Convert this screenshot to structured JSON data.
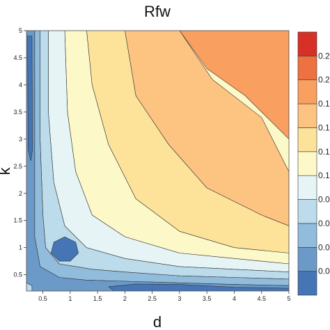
{
  "chart_data": {
    "type": "contour",
    "title": "Rfw",
    "xlabel": "d",
    "ylabel": "k",
    "xlim": [
      0.2,
      5
    ],
    "ylim": [
      0.2,
      5
    ],
    "x_ticks": [
      "0.5",
      "1",
      "1.5",
      "2",
      "2.5",
      "3",
      "3.5",
      "4",
      "4.5",
      "5"
    ],
    "y_ticks": [
      "0.5",
      "1",
      "1.5",
      "2",
      "2.5",
      "3",
      "3.5",
      "4",
      "4.5",
      "5"
    ],
    "colorbar": {
      "tick_labels": [
        "0.0",
        "0.0",
        "0.0",
        "0.0",
        "0.1",
        "0.1",
        "0.1",
        "0.1",
        "0.2",
        "0.2"
      ],
      "colors": [
        "#4575b4",
        "#6b9ac9",
        "#92bcdc",
        "#bcdbeb",
        "#e6f4f5",
        "#fcf8c8",
        "#fde39a",
        "#fdc380",
        "#f99f5f",
        "#ee7141",
        "#d73027"
      ]
    },
    "levels": [
      {
        "color": "#f99f5f",
        "contour": [
          [
            3.0,
            5.0
          ],
          [
            5.0,
            5.0
          ],
          [
            5.0,
            3.0
          ],
          [
            4.2,
            3.8
          ],
          [
            3.5,
            4.3
          ]
        ]
      },
      {
        "color": "#fdc380",
        "contour": [
          [
            2.0,
            5.0
          ],
          [
            3.0,
            5.0
          ],
          [
            3.6,
            4.1
          ],
          [
            4.5,
            3.4
          ],
          [
            5.0,
            2.4
          ],
          [
            5.0,
            1.4
          ],
          [
            4.5,
            1.6
          ],
          [
            3.5,
            2.1
          ],
          [
            2.8,
            2.9
          ],
          [
            2.2,
            3.8
          ]
        ]
      },
      {
        "color": "#fde39a",
        "contour": [
          [
            1.3,
            5.0
          ],
          [
            2.0,
            5.0
          ],
          [
            2.2,
            3.8
          ],
          [
            2.8,
            2.9
          ],
          [
            3.5,
            2.1
          ],
          [
            4.5,
            1.6
          ],
          [
            5.0,
            1.4
          ],
          [
            5.0,
            0.9
          ],
          [
            4.0,
            1.0
          ],
          [
            3.0,
            1.3
          ],
          [
            2.2,
            1.9
          ],
          [
            1.7,
            2.9
          ],
          [
            1.4,
            4.0
          ]
        ]
      },
      {
        "color": "#fcf8c8",
        "contour": [
          [
            0.9,
            5.0
          ],
          [
            1.3,
            5.0
          ],
          [
            1.4,
            4.0
          ],
          [
            1.7,
            2.9
          ],
          [
            2.2,
            1.9
          ],
          [
            3.0,
            1.3
          ],
          [
            4.0,
            1.0
          ],
          [
            5.0,
            0.9
          ],
          [
            5.0,
            0.7
          ],
          [
            4.0,
            0.8
          ],
          [
            3.0,
            0.9
          ],
          [
            2.0,
            1.2
          ],
          [
            1.4,
            1.6
          ],
          [
            1.1,
            2.4
          ],
          [
            0.95,
            3.5
          ]
        ]
      },
      {
        "color": "#e6f4f5",
        "contour": [
          [
            0.6,
            5.0
          ],
          [
            0.9,
            5.0
          ],
          [
            0.95,
            3.5
          ],
          [
            1.1,
            2.4
          ],
          [
            1.4,
            1.6
          ],
          [
            2.0,
            1.2
          ],
          [
            3.0,
            0.9
          ],
          [
            4.0,
            0.8
          ],
          [
            5.0,
            0.7
          ],
          [
            5.0,
            0.55
          ],
          [
            4.0,
            0.6
          ],
          [
            3.0,
            0.65
          ],
          [
            2.0,
            0.8
          ],
          [
            1.3,
            1.0
          ],
          [
            0.9,
            1.4
          ],
          [
            0.7,
            2.2
          ],
          [
            0.6,
            3.5
          ]
        ]
      },
      {
        "color": "#bcdbeb",
        "contour": [
          [
            0.45,
            5.0
          ],
          [
            0.6,
            5.0
          ],
          [
            0.6,
            3.5
          ],
          [
            0.7,
            2.2
          ],
          [
            0.9,
            1.4
          ],
          [
            1.3,
            1.0
          ],
          [
            2.0,
            0.8
          ],
          [
            3.0,
            0.65
          ],
          [
            4.0,
            0.6
          ],
          [
            5.0,
            0.55
          ],
          [
            5.0,
            0.42
          ],
          [
            4.0,
            0.45
          ],
          [
            3.0,
            0.48
          ],
          [
            2.0,
            0.55
          ],
          [
            1.4,
            0.6
          ],
          [
            0.8,
            0.7
          ],
          [
            0.55,
            1.0
          ],
          [
            0.5,
            1.6
          ],
          [
            0.45,
            3.0
          ]
        ]
      },
      {
        "color": "#92bcdc",
        "contour": [
          [
            0.35,
            5.0
          ],
          [
            0.45,
            5.0
          ],
          [
            0.45,
            3.0
          ],
          [
            0.5,
            1.6
          ],
          [
            0.55,
            1.0
          ],
          [
            0.8,
            0.7
          ],
          [
            1.4,
            0.6
          ],
          [
            2.0,
            0.55
          ],
          [
            3.0,
            0.48
          ],
          [
            4.0,
            0.45
          ],
          [
            5.0,
            0.42
          ],
          [
            5.0,
            0.3
          ],
          [
            4.0,
            0.32
          ],
          [
            3.0,
            0.35
          ],
          [
            2.0,
            0.38
          ],
          [
            1.3,
            0.4
          ],
          [
            0.8,
            0.45
          ],
          [
            0.45,
            0.65
          ],
          [
            0.35,
            1.2
          ]
        ]
      },
      {
        "color": "#6b9ac9",
        "contour": [
          [
            0.2,
            5.0
          ],
          [
            0.35,
            5.0
          ],
          [
            0.35,
            1.2
          ],
          [
            0.45,
            0.65
          ],
          [
            0.8,
            0.45
          ],
          [
            1.3,
            0.4
          ],
          [
            2.0,
            0.38
          ],
          [
            3.0,
            0.35
          ],
          [
            4.0,
            0.32
          ],
          [
            5.0,
            0.3
          ],
          [
            5.0,
            0.2
          ],
          [
            0.2,
            0.2
          ]
        ]
      },
      {
        "color": "#4575b4",
        "contour": [
          [
            0.7,
            1.1
          ],
          [
            0.9,
            1.2
          ],
          [
            1.1,
            1.1
          ],
          [
            1.15,
            0.9
          ],
          [
            1.0,
            0.75
          ],
          [
            0.8,
            0.75
          ],
          [
            0.65,
            0.9
          ]
        ]
      },
      {
        "color": "#4575b4",
        "contour": [
          [
            1.8,
            0.2
          ],
          [
            5.0,
            0.2
          ],
          [
            5.0,
            0.25
          ],
          [
            4.0,
            0.27
          ],
          [
            3.0,
            0.32
          ],
          [
            2.2,
            0.33
          ],
          [
            1.7,
            0.28
          ]
        ]
      },
      {
        "color": "#4575b4",
        "contour": [
          [
            0.22,
            4.9
          ],
          [
            0.3,
            4.9
          ],
          [
            0.31,
            2.8
          ],
          [
            0.28,
            2.6
          ],
          [
            0.23,
            2.8
          ]
        ]
      },
      {
        "color": "#bcdbeb",
        "contour": [
          [
            0.2,
            0.2
          ],
          [
            0.3,
            0.2
          ],
          [
            0.3,
            0.3
          ],
          [
            0.2,
            0.35
          ]
        ]
      }
    ]
  }
}
